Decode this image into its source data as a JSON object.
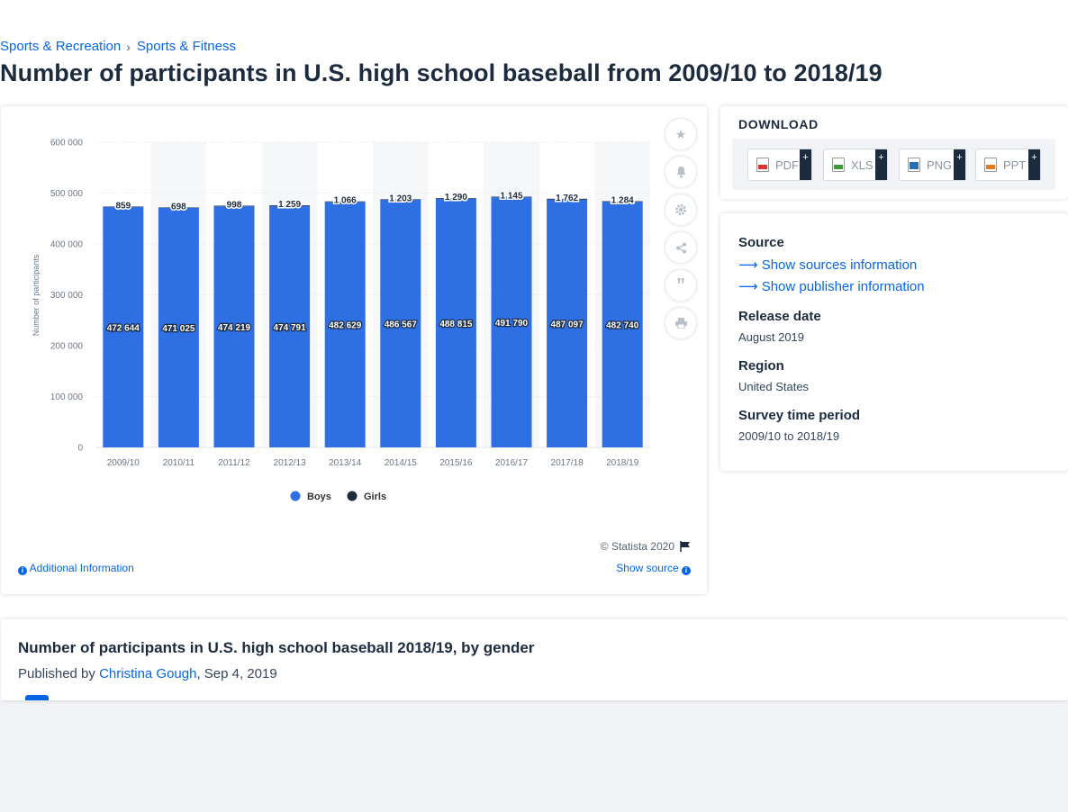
{
  "breadcrumb": {
    "items": [
      "Sports & Recreation",
      "Sports & Fitness"
    ],
    "separator": "›"
  },
  "page_title": "Number of participants in U.S. high school baseball from 2009/10 to 2018/19",
  "chart": {
    "copyright": "© Statista 2020",
    "additional_info": "Additional Information",
    "show_source": "Show source"
  },
  "chart_data": {
    "type": "bar",
    "stacked": true,
    "categories": [
      "2009/10",
      "2010/11",
      "2011/12",
      "2012/13",
      "2013/14",
      "2014/15",
      "2015/16",
      "2016/17",
      "2017/18",
      "2018/19"
    ],
    "series": [
      {
        "name": "Boys",
        "values": [
          472644,
          471025,
          474219,
          474791,
          482629,
          486567,
          488815,
          491790,
          487097,
          482740
        ],
        "labels": [
          "472 644",
          "471 025",
          "474 219",
          "474 791",
          "482 629",
          "486 567",
          "488 815",
          "491 790",
          "487 097",
          "482 740"
        ],
        "color": "#2f6fe4"
      },
      {
        "name": "Girls",
        "values": [
          859,
          698,
          998,
          1259,
          1066,
          1203,
          1290,
          1145,
          1762,
          1284
        ],
        "labels": [
          "859",
          "698",
          "998",
          "1 259",
          "1 066",
          "1 203",
          "1 290",
          "1 145",
          "1 762",
          "1 284"
        ],
        "color": "#1d2b3f"
      }
    ],
    "ylabel": "Number of participants",
    "ylim": [
      0,
      600000
    ],
    "yticks": [
      0,
      100000,
      200000,
      300000,
      400000,
      500000,
      600000
    ],
    "ytick_labels": [
      "0",
      "100 000",
      "200 000",
      "300 000",
      "400 000",
      "500 000",
      "600 000"
    ],
    "legend_position": "bottom"
  },
  "download": {
    "title": "DOWNLOAD",
    "buttons": [
      {
        "label": "PDF",
        "icon": "pdf-file-icon",
        "color": "#e0322f"
      },
      {
        "label": "XLS",
        "icon": "xls-file-icon",
        "color": "#3a9b3a"
      },
      {
        "label": "PNG",
        "icon": "png-file-icon",
        "color": "#2a6db0"
      },
      {
        "label": "PPT",
        "icon": "ppt-file-icon",
        "color": "#e37a1f"
      }
    ],
    "plus": "+"
  },
  "meta": {
    "source_label": "Source",
    "show_sources": "Show sources information",
    "show_publisher": "Show publisher information",
    "release_label": "Release date",
    "release_value": "August 2019",
    "region_label": "Region",
    "region_value": "United States",
    "survey_label": "Survey time period",
    "survey_value": "2009/10 to 2018/19"
  },
  "related": {
    "title": "Number of participants in U.S. high school baseball 2018/19, by gender",
    "published_prefix": "Published by ",
    "author": "Christina Gough",
    "date": ", Sep 4, 2019"
  }
}
